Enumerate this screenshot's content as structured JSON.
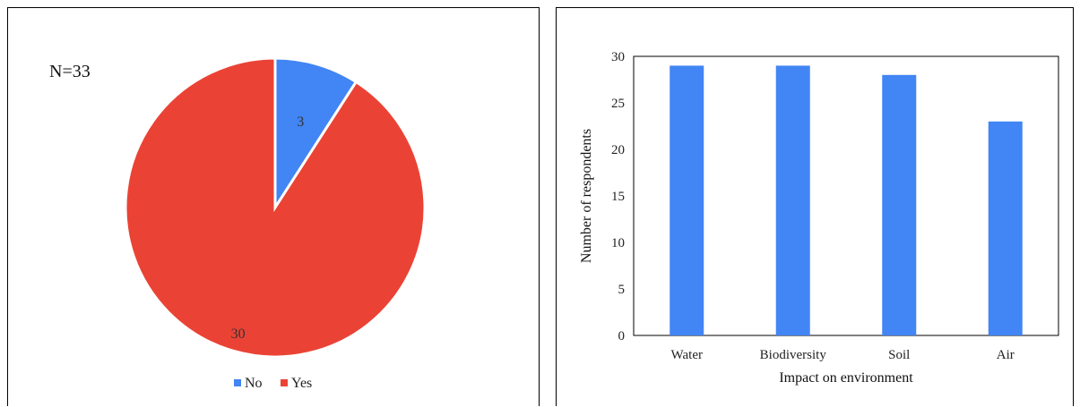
{
  "chart_data": [
    {
      "type": "pie",
      "annotation": "N=33",
      "categories": [
        "No",
        "Yes"
      ],
      "values": [
        3,
        30
      ],
      "data_labels": [
        "3",
        "30"
      ],
      "colors": [
        "#4285F4",
        "#EA4335"
      ],
      "legend": {
        "position": "bottom",
        "entries": [
          "No",
          "Yes"
        ]
      }
    },
    {
      "type": "bar",
      "categories": [
        "Water",
        "Biodiversity",
        "Soil",
        "Air"
      ],
      "values": [
        29,
        29,
        28,
        23
      ],
      "xlabel": "Impact on environment",
      "ylabel": "Number of respondents",
      "ylim": [
        0,
        30
      ],
      "yticks": [
        "0",
        "5",
        "10",
        "15",
        "20",
        "25",
        "30"
      ],
      "color": "#4285F4",
      "grid": false
    }
  ]
}
